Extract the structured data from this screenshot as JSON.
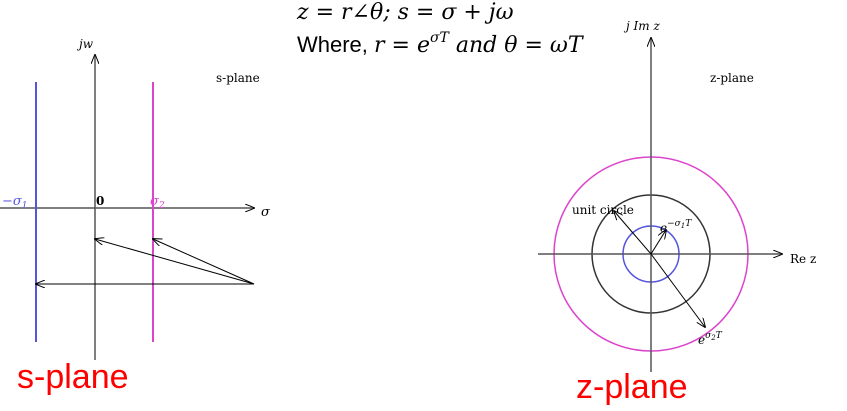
{
  "equations": {
    "z_prefix": "z = r∠θ; s = σ + ",
    "j_omega": "jω",
    "where_label": "Where, ",
    "r_exp": "r = e",
    "r_exp_sup": "σT",
    "and_theta": " and θ = ωT"
  },
  "s_plane": {
    "axis_j": "jw",
    "axis_sigma": "σ",
    "plane_label": "s-plane",
    "origin": "0",
    "neg_sigma1": "−σ",
    "neg_sigma1_sub": "1",
    "sigma2": "σ",
    "sigma2_sub": "2",
    "caption": "s-plane"
  },
  "z_plane": {
    "axis_im": "j Im z",
    "axis_re": "Re z",
    "plane_label": "z-plane",
    "unit_circle": "unit circle",
    "exp_neg": "e",
    "exp_neg_sup": "−σ",
    "exp_neg_sup_sub": "1",
    "exp_neg_sup_tail": "T",
    "exp_pos": "e",
    "exp_pos_sup": "σ",
    "exp_pos_sup_sub": "2",
    "exp_pos_sup_tail": "T",
    "caption": "z-plane"
  },
  "colors": {
    "blue": "#5555dd",
    "magenta": "#dd44cc",
    "caption_red": "#ff0000"
  }
}
